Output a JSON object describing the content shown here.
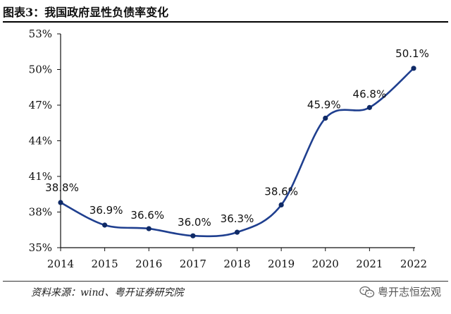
{
  "header": {
    "title": "图表3：我国政府显性负债率变化"
  },
  "footer": {
    "source": "资料来源：wind、粤开证券研究院",
    "watermark": "粤开志恒宏观"
  },
  "colors": {
    "line": "#1f3f8f",
    "axis": "#111111"
  },
  "chart_data": {
    "type": "line",
    "title": "",
    "xlabel": "",
    "ylabel": "",
    "categories": [
      "2014",
      "2015",
      "2016",
      "2017",
      "2018",
      "2019",
      "2020",
      "2021",
      "2022"
    ],
    "series": [
      {
        "values": [
          38.8,
          36.9,
          36.6,
          36.0,
          36.3,
          38.6,
          45.9,
          46.8,
          50.1
        ]
      }
    ],
    "data_labels": [
      "38.8%",
      "36.9%",
      "36.6%",
      "36.0%",
      "36.3%",
      "38.6%",
      "45.9%",
      "46.8%",
      "50.1%"
    ],
    "ylim": [
      35,
      53
    ],
    "yticks": [
      35,
      38,
      41,
      44,
      47,
      50,
      53
    ],
    "ytick_labels": [
      "35%",
      "38%",
      "41%",
      "44%",
      "47%",
      "50%",
      "53%"
    ],
    "grid": false,
    "legend": "none"
  }
}
